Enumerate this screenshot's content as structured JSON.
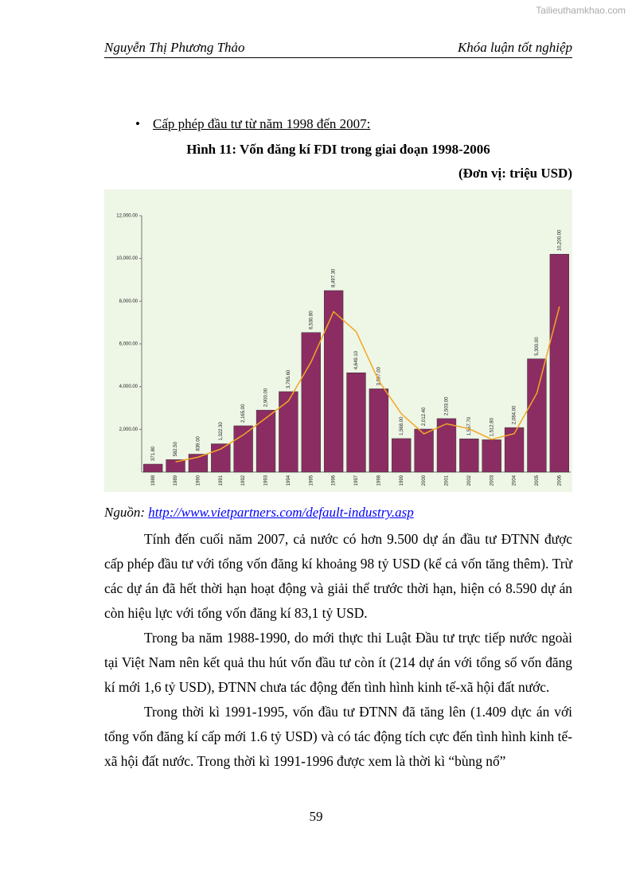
{
  "watermark": "Tailieuthamkhao.com",
  "header": {
    "author": "Nguyễn Thị Phương Thảo",
    "thesis": "Khóa luận tốt nghiệp"
  },
  "bullet": "Cấp phép đầu tư từ năm 1998 đến 2007:",
  "chart_data": {
    "type": "bar",
    "title": "Hình 11: Vốn đăng kí FDI trong giai đoạn 1998-2006",
    "subtitle": "(Đơn vị: triệu USD)",
    "categories": [
      "1988",
      "1989",
      "1990",
      "1991",
      "1992",
      "1993",
      "1994",
      "1995",
      "1996",
      "1997",
      "1998",
      "1999",
      "2000",
      "2001",
      "2002",
      "2003",
      "2004",
      "2005",
      "2006"
    ],
    "values": [
      371.8,
      582.5,
      839,
      1322.3,
      2165,
      2900,
      3765.6,
      6530.8,
      8497.3,
      4649.1,
      3897,
      1568,
      2012.4,
      2503,
      1557.7,
      1512.8,
      2084,
      5300,
      10200
    ],
    "value_labels": [
      "371.80",
      "582.50",
      "839.00",
      "1,322.30",
      "2,165.00",
      "2,900.00",
      "3,765.60",
      "6,530.80",
      "8,497.30",
      "4,649.10",
      "3,897.00",
      "1,568.00",
      "2,012.40",
      "2,503.00",
      "1,557.70",
      "1,512.80",
      "2,084.00",
      "5,300.00",
      "10,200.00"
    ],
    "trend_values": [
      null,
      480,
      700,
      1080,
      1740,
      2530,
      3330,
      5150,
      7510,
      6570,
      4270,
      2730,
      1790,
      2260,
      2030,
      1535,
      1800,
      3690,
      7750
    ],
    "color": "#8b2d62",
    "trend_color": "#f5a623",
    "ylim": [
      0,
      12000
    ],
    "yticks": [
      {
        "value": 2000,
        "label": "2,000.00"
      },
      {
        "value": 4000,
        "label": "4,000.00"
      },
      {
        "value": 6000,
        "label": "6,000.00"
      },
      {
        "value": 8000,
        "label": "8,000.00"
      },
      {
        "value": 10000,
        "label": "10,000.00"
      },
      {
        "value": 12000,
        "label": "12,000.00"
      }
    ]
  },
  "source": {
    "label": "Nguồn:",
    "url": "http://www.vietpartners.com/default-industry.asp"
  },
  "paragraphs": [
    "Tính đến cuối năm 2007, cả nước có hơn 9.500 dự án đầu tư ĐTNN được cấp phép đầu tư với tổng vốn đăng kí khoảng 98 tỷ USD (kể cả vốn tăng thêm). Trừ các dự án đã hết thời hạn hoạt động và giải thể trước thời hạn, hiện có 8.590 dự án còn hiệu lực với tổng vốn đăng kí 83,1 tỷ USD.",
    "Trong ba năm 1988-1990, do mới thực thi Luật Đầu tư trực tiếp nước ngoài tại Việt Nam nên kết quả thu hút vốn đầu tư còn ít (214 dự án với tổng số vốn đăng kí mới 1,6 tỷ USD), ĐTNN chưa tác động đến tình hình kinh tế-xã hội đất nước.",
    "Trong thời kì 1991-1995, vốn đầu tư ĐTNN đã tăng lên (1.409 dực án với tổng vốn đăng kí cấp mới 1.6 tỷ USD) và có tác động tích cực đến tình hình kinh tế-xã hội đất nước. Trong thời kì 1991-1996 được xem là thời kì “bùng nổ”"
  ],
  "page_number": "59"
}
